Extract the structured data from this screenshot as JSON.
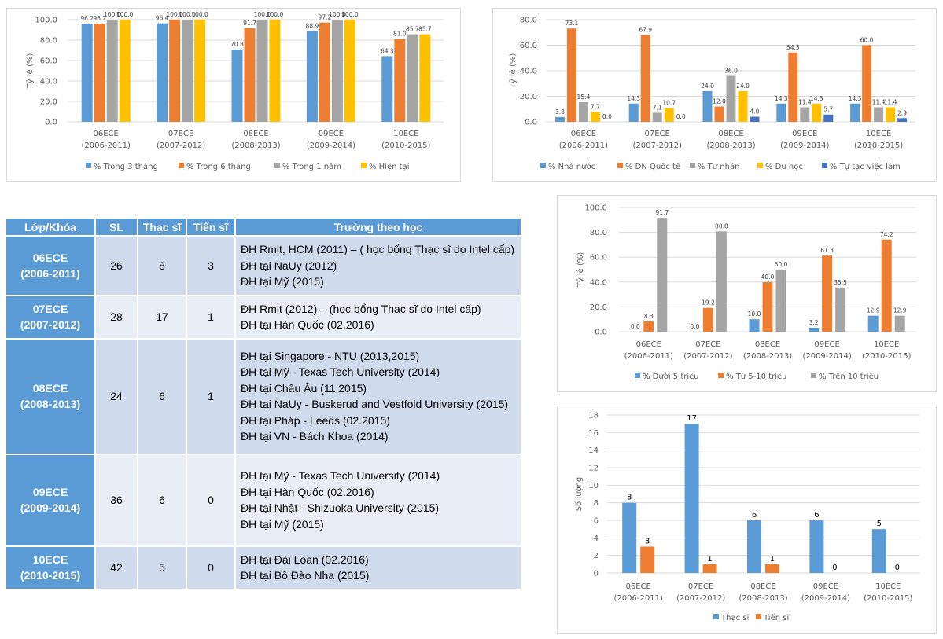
{
  "chart_data": [
    {
      "id": "employment-rate",
      "type": "bar",
      "title": "",
      "xlabel": "",
      "ylabel": "Tỷ lệ (%)",
      "ylim": [
        0,
        100
      ],
      "yticks": [
        "0.0",
        "20.0",
        "40.0",
        "60.0",
        "80.0",
        "100.0"
      ],
      "ytick_values": [
        0,
        20,
        40,
        60,
        80,
        100
      ],
      "grid": true,
      "legend": "bottom",
      "categories": [
        [
          "06ECE",
          "(2006-2011)"
        ],
        [
          "07ECE",
          "(2007-2012)"
        ],
        [
          "08ECE",
          "(2008-2013)"
        ],
        [
          "09ECE",
          "(2009-2014)"
        ],
        [
          "10ECE",
          "(2010-2015)"
        ]
      ],
      "series": [
        {
          "name": "% Trong 3 tháng",
          "color": "#5b9bd5",
          "values": [
            96.2,
            96.4,
            70.8,
            88.9,
            64.3
          ],
          "labels": [
            "96.2",
            "96.4",
            "70.8",
            "88.9",
            "64.3"
          ]
        },
        {
          "name": "% Trong 6 tháng",
          "color": "#ed7d31",
          "values": [
            96.2,
            100.0,
            91.7,
            97.2,
            81.0
          ],
          "labels": [
            "96.2",
            "100.0",
            "91.7",
            "97.2",
            "81.0"
          ]
        },
        {
          "name": "% Trong 1 năm",
          "color": "#a5a5a5",
          "values": [
            100.0,
            100.0,
            100.0,
            100.0,
            85.7
          ],
          "labels": [
            "100.0",
            "100.0",
            "100.0",
            "100.0",
            "85.7"
          ]
        },
        {
          "name": "% Hiện tại",
          "color": "#ffc000",
          "values": [
            100.0,
            100.0,
            100.0,
            100.0,
            85.7
          ],
          "labels": [
            "100.0",
            "100.0",
            "100.0",
            "100.0",
            "85.7"
          ]
        }
      ]
    },
    {
      "id": "employer-type",
      "type": "bar",
      "title": "",
      "xlabel": "",
      "ylabel": "Tỷ lệ (%)",
      "ylim": [
        0,
        80
      ],
      "yticks": [
        "0.0",
        "20.0",
        "40.0",
        "60.0",
        "80.0"
      ],
      "ytick_values": [
        0,
        20,
        40,
        60,
        80
      ],
      "grid": true,
      "legend": "bottom",
      "categories": [
        [
          "06ECE",
          "(2006-2011)"
        ],
        [
          "07ECE",
          "(2007-2012)"
        ],
        [
          "08ECE",
          "(2008-2013)"
        ],
        [
          "09ECE",
          "(2009-2014)"
        ],
        [
          "10ECE",
          "(2010-2015)"
        ]
      ],
      "series": [
        {
          "name": "% Nhà nước",
          "color": "#5b9bd5",
          "values": [
            3.8,
            14.3,
            24.0,
            14.3,
            14.3
          ],
          "labels": [
            "3.8",
            "14.3",
            "24.0",
            "14.3",
            "14.3"
          ]
        },
        {
          "name": "% DN Quốc tế",
          "color": "#ed7d31",
          "values": [
            73.1,
            67.9,
            12.0,
            54.3,
            60.0
          ],
          "labels": [
            "73.1",
            "67.9",
            "12.0",
            "54.3",
            "60.0"
          ]
        },
        {
          "name": "% Tư nhân",
          "color": "#a5a5a5",
          "values": [
            15.4,
            7.1,
            36.0,
            11.4,
            11.4
          ],
          "labels": [
            "15.4",
            "7.1",
            "36.0",
            "11.4",
            "11.4"
          ]
        },
        {
          "name": "% Du học",
          "color": "#ffc000",
          "values": [
            7.7,
            10.7,
            24.0,
            14.3,
            11.4
          ],
          "labels": [
            "7.7",
            "10.7",
            "24.0",
            "14.3",
            "11.4"
          ]
        },
        {
          "name": "% Tự tạo việc làm",
          "color": "#4472c4",
          "values": [
            0.0,
            0.0,
            4.0,
            5.7,
            2.9
          ],
          "labels": [
            "0.0",
            "0.0",
            "4.0",
            "5.7",
            "2.9"
          ]
        }
      ]
    },
    {
      "id": "salary-range",
      "type": "bar",
      "title": "",
      "xlabel": "",
      "ylabel": "Tỷ lệ (%)",
      "ylim": [
        0,
        100
      ],
      "yticks": [
        "0.0",
        "20.0",
        "40.0",
        "60.0",
        "80.0",
        "100.0"
      ],
      "ytick_values": [
        0,
        20,
        40,
        60,
        80,
        100
      ],
      "grid": true,
      "legend": "bottom",
      "categories": [
        [
          "06ECE",
          "(2006-2011)"
        ],
        [
          "07ECE",
          "(2007-2012)"
        ],
        [
          "08ECE",
          "(2008-2013)"
        ],
        [
          "09ECE",
          "(2009-2014)"
        ],
        [
          "10ECE",
          "(2010-2015)"
        ]
      ],
      "series": [
        {
          "name": "% Dưới 5 triệu",
          "color": "#5b9bd5",
          "values": [
            0.0,
            0.0,
            10.0,
            3.2,
            12.9
          ],
          "labels": [
            "0.0",
            "0.0",
            "10.0",
            "3.2",
            "12.9"
          ]
        },
        {
          "name": "% Từ  5-10 triệu",
          "color": "#ed7d31",
          "values": [
            8.3,
            19.2,
            40.0,
            61.3,
            74.2
          ],
          "labels": [
            "8.3",
            "19.2",
            "40.0",
            "61.3",
            "74.2"
          ]
        },
        {
          "name": "% Trên 10 triệu",
          "color": "#a5a5a5",
          "values": [
            91.7,
            80.8,
            50.0,
            35.5,
            12.9
          ],
          "labels": [
            "91.7",
            "80.8",
            "50.0",
            "35.5",
            "12.9"
          ]
        }
      ]
    },
    {
      "id": "graduate-study",
      "type": "bar",
      "title": "",
      "xlabel": "",
      "ylabel": "Số lượng",
      "ylim": [
        0,
        18
      ],
      "yticks": [
        "0",
        "2",
        "4",
        "6",
        "8",
        "10",
        "12",
        "14",
        "16",
        "18"
      ],
      "ytick_values": [
        0,
        2,
        4,
        6,
        8,
        10,
        12,
        14,
        16,
        18
      ],
      "grid": true,
      "legend": "bottom",
      "categories": [
        [
          "06ECE",
          "(2006-2011)"
        ],
        [
          "07ECE",
          "(2007-2012)"
        ],
        [
          "08ECE",
          "(2008-2013)"
        ],
        [
          "09ECE",
          "(2009-2014)"
        ],
        [
          "10ECE",
          "(2010-2015)"
        ]
      ],
      "series": [
        {
          "name": "Thạc sĩ",
          "color": "#5b9bd5",
          "values": [
            8,
            17,
            6,
            6,
            5
          ],
          "labels": [
            "8",
            "17",
            "6",
            "6",
            "5"
          ]
        },
        {
          "name": "Tiến sĩ",
          "color": "#ed7d31",
          "values": [
            3,
            1,
            1,
            0,
            0
          ],
          "labels": [
            "3",
            "1",
            "1",
            "0",
            "0"
          ]
        }
      ]
    }
  ],
  "table": {
    "headers": [
      "Lớp/Khóa",
      "SL",
      "Thạc sĩ",
      "Tiến sĩ",
      "Trường theo học"
    ],
    "rows": [
      {
        "lop": "06ECE",
        "khoa": "(2006-2011)",
        "sl": "26",
        "thacsi": "8",
        "tiensi": "3",
        "schools": [
          "ĐH Rmit, HCM (2011) – ( học bổng Thạc sĩ do Intel cấp)",
          "ĐH tại NaUy (2012)",
          "ĐH tại Mỹ (2015)"
        ]
      },
      {
        "lop": "07ECE",
        "khoa": "(2007-2012)",
        "sl": "28",
        "thacsi": "17",
        "tiensi": "1",
        "schools": [
          "ĐH Rmit (2012) – (học bổng Thạc sĩ do Intel cấp)",
          "ĐH tại Hàn Quốc (02.2016)"
        ]
      },
      {
        "lop": "08ECE",
        "khoa": "(2008-2013)",
        "sl": "24",
        "thacsi": "6",
        "tiensi": "1",
        "schools": [
          "ĐH tại Singapore - NTU (2013,2015)",
          "ĐH tại Mỹ - Texas Tech University (2014)",
          "ĐH tại Châu Âu (11.2015)",
          "ĐH tại NaUy - Buskerud and Vestfold University (2015)",
          "ĐH tại Pháp - Leeds (02.2015)",
          "ĐH tại VN - Bách Khoa (2014)"
        ]
      },
      {
        "lop": "09ECE",
        "khoa": "(2009-2014)",
        "sl": "36",
        "thacsi": "6",
        "tiensi": "0",
        "schools": [
          "ĐH tại Mỹ - Texas Tech University (2014)",
          "ĐH tại Hàn Quốc (02.2016)",
          "ĐH tại Nhật - Shizuoka University (2015)",
          "ĐH tại Mỹ (2015)"
        ]
      },
      {
        "lop": "10ECE",
        "khoa": "(2010-2015)",
        "sl": "42",
        "thacsi": "5",
        "tiensi": "0",
        "schools": [
          "ĐH tại Đài Loan (02.2016)",
          "ĐH tại Bồ Đào Nha (2015)"
        ]
      }
    ]
  }
}
